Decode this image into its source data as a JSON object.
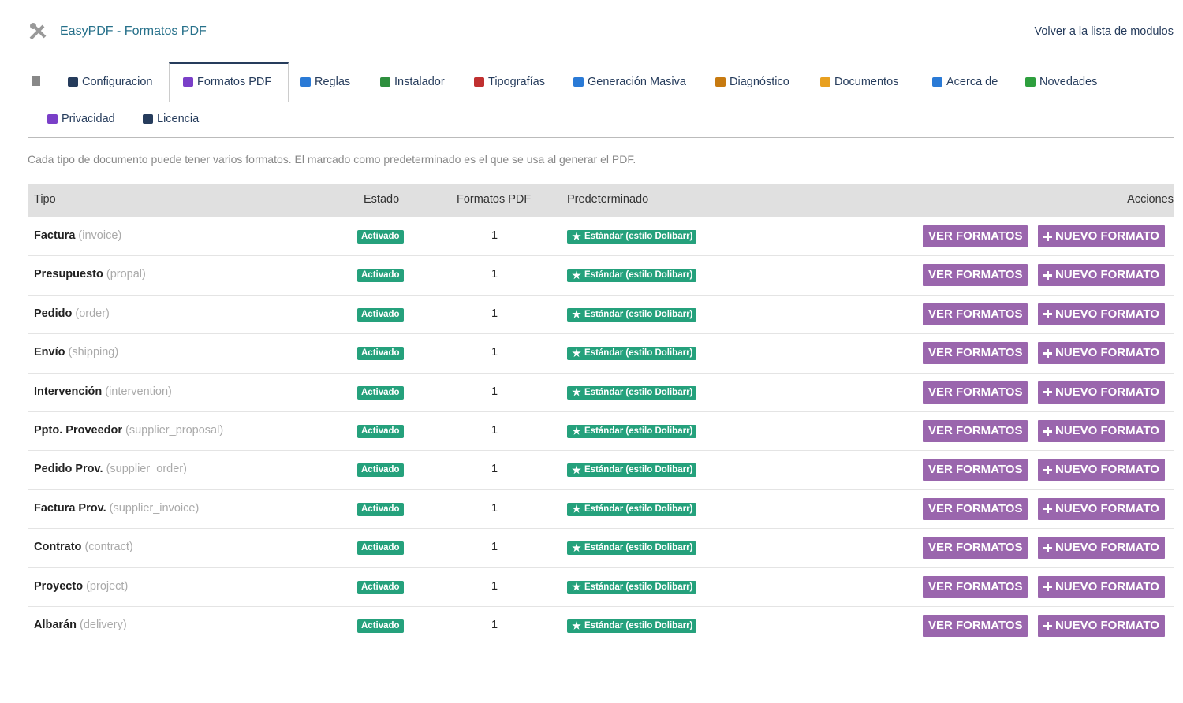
{
  "header": {
    "title": "EasyPDF - Formatos PDF",
    "back_link": "Volver a la lista de modulos"
  },
  "tabs": [
    "Configuracion",
    "Formatos PDF",
    "Reglas",
    "Instalador",
    "Tipografías",
    "Generación Masiva",
    "Diagnóstico",
    "Documentos",
    "Acerca de",
    "Novedades",
    "Privacidad",
    "Licencia"
  ],
  "description": "Cada tipo de documento puede tener varios formatos. El marcado como predeterminado es el que se usa al generar el PDF.",
  "table": {
    "columns": [
      "Tipo",
      "Estado",
      "Formatos PDF",
      "Predeterminado",
      "Acciones"
    ],
    "rows": [
      {
        "name": "Factura",
        "code": "(invoice)",
        "status": "Activado",
        "count": 1,
        "default": "Estándar (estilo Dolibarr)",
        "actions": [
          "VER FORMATOS",
          "NUEVO FORMATO"
        ]
      },
      {
        "name": "Presupuesto",
        "code": "(propal)",
        "status": "Activado",
        "count": 1,
        "default": "Estándar (estilo Dolibarr)",
        "actions": [
          "VER FORMATOS",
          "NUEVO FORMATO"
        ]
      },
      {
        "name": "Pedido",
        "code": "(order)",
        "status": "Activado",
        "count": 1,
        "default": "Estándar (estilo Dolibarr)",
        "actions": [
          "VER FORMATOS",
          "NUEVO FORMATO"
        ]
      },
      {
        "name": "Envío",
        "code": "(shipping)",
        "status": "Activado",
        "count": 1,
        "default": "Estándar (estilo Dolibarr)",
        "actions": [
          "VER FORMATOS",
          "NUEVO FORMATO"
        ]
      },
      {
        "name": "Intervención",
        "code": "(intervention)",
        "status": "Activado",
        "count": 1,
        "default": "Estándar (estilo Dolibarr)",
        "actions": [
          "VER FORMATOS",
          "NUEVO FORMATO"
        ]
      },
      {
        "name": "Ppto. Proveedor",
        "code": "(supplier_proposal)",
        "status": "Activado",
        "count": 1,
        "default": "Estándar (estilo Dolibarr)",
        "actions": [
          "VER FORMATOS",
          "NUEVO FORMATO"
        ]
      },
      {
        "name": "Pedido Prov.",
        "code": "(supplier_order)",
        "status": "Activado",
        "count": 1,
        "default": "Estándar (estilo Dolibarr)",
        "actions": [
          "VER FORMATOS",
          "NUEVO FORMATO"
        ]
      },
      {
        "name": "Factura Prov.",
        "code": "(supplier_invoice)",
        "status": "Activado",
        "count": 1,
        "default": "Estándar (estilo Dolibarr)",
        "actions": [
          "VER FORMATOS",
          "NUEVO FORMATO"
        ]
      },
      {
        "name": "Contrato",
        "code": "(contract)",
        "status": "Activado",
        "count": 1,
        "default": "Estándar (estilo Dolibarr)",
        "actions": [
          "VER FORMATOS",
          "NUEVO FORMATO"
        ]
      },
      {
        "name": "Proyecto",
        "code": "(project)",
        "status": "Activado",
        "count": 1,
        "default": "Estándar (estilo Dolibarr)",
        "actions": [
          "VER FORMATOS",
          "NUEVO FORMATO"
        ]
      },
      {
        "name": "Albarán",
        "code": "(delivery)",
        "status": "Activado",
        "count": 1,
        "default": "Estándar (estilo Dolibarr)",
        "actions": [
          "VER FORMATOS",
          "NUEVO FORMATO"
        ]
      }
    ]
  }
}
